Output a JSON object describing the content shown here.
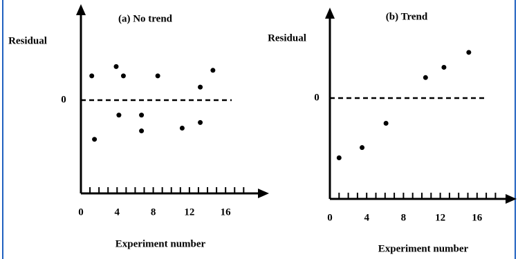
{
  "chart_data": [
    {
      "type": "scatter",
      "title": "(a) No trend",
      "y_label": "Residual",
      "x_label": "Experiment number",
      "x": [
        1.2,
        1.5,
        3.9,
        4.2,
        4.7,
        6.7,
        6.7,
        8.5,
        11.2,
        13.2,
        13.2,
        14.6
      ],
      "values": [
        0.26,
        -0.42,
        0.36,
        -0.16,
        0.26,
        -0.16,
        -0.33,
        0.26,
        -0.3,
        0.14,
        -0.24,
        0.32
      ],
      "color": "#000000",
      "xlim": [
        0,
        20.5
      ],
      "xticks": [
        0,
        4,
        8,
        12,
        16
      ],
      "minor_xticks": [
        1,
        2,
        3,
        4,
        5,
        6,
        7,
        8,
        9,
        10,
        11,
        12,
        13,
        14,
        15,
        16,
        17,
        18
      ],
      "ylim": [
        -1,
        1
      ],
      "yticks": [
        0
      ]
    },
    {
      "type": "scatter",
      "title": "(b) Trend",
      "y_label": "Residual",
      "x_label": "Experiment number",
      "x": [
        1.0,
        3.5,
        6.1,
        10.4,
        12.4,
        15.1
      ],
      "values": [
        -0.64,
        -0.53,
        -0.27,
        0.22,
        0.33,
        0.49
      ],
      "color": "#000000",
      "xlim": [
        0,
        20
      ],
      "xticks": [
        0,
        4,
        8,
        12,
        16
      ],
      "minor_xticks": [
        1,
        2,
        3,
        4,
        5,
        6,
        7,
        8,
        9,
        10,
        11,
        12,
        13,
        14,
        15,
        16,
        17,
        18
      ],
      "ylim": [
        -1.08,
        0.94
      ],
      "yticks": [
        0
      ]
    }
  ]
}
